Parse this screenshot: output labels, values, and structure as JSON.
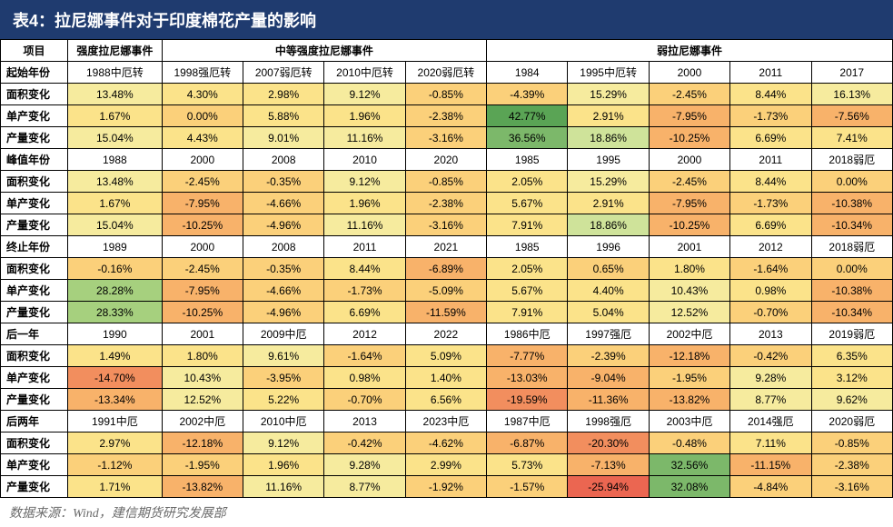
{
  "title": "表4：拉尼娜事件对于印度棉花产量的影响",
  "source": "数据来源：Wind，建信期货研究发展部",
  "header": {
    "c0": "项目",
    "g1": "强度拉尼娜事件",
    "g2": "中等强度拉尼娜事件",
    "g3": "弱拉尼娜事件"
  },
  "row_labels": {
    "start_year": "起始年份",
    "area": "面积变化",
    "yield": "单产变化",
    "output": "产量变化",
    "peak_year": "峰值年份",
    "end_year": "终止年份",
    "next_year": "后一年",
    "next2_year": "后两年"
  },
  "colors": {
    "scale": [
      "#5aa455",
      "#7cb86a",
      "#a6d07e",
      "#cfe39a",
      "#f6eb9e",
      "#fbe38a",
      "#fbd07a",
      "#f8b26a",
      "#f28e5e",
      "#eb6651"
    ]
  },
  "sections": [
    {
      "year_row": [
        "1988中厄转",
        "1998强厄转",
        "2007弱厄转",
        "2010中厄转",
        "2020弱厄转",
        "1984",
        "1995中厄转",
        "2000",
        "2011",
        "2017"
      ],
      "label_key": "start_year",
      "metrics": [
        {
          "key": "area",
          "vals": [
            13.48,
            4.3,
            2.98,
            9.12,
            -0.85,
            -4.39,
            15.29,
            -2.45,
            8.44,
            16.13
          ]
        },
        {
          "key": "yield",
          "vals": [
            1.67,
            0.0,
            5.88,
            1.96,
            -2.38,
            42.77,
            2.91,
            -7.95,
            -1.73,
            -7.56
          ]
        },
        {
          "key": "output",
          "vals": [
            15.04,
            4.43,
            9.01,
            11.16,
            -3.16,
            36.56,
            18.86,
            -10.25,
            6.69,
            7.41
          ]
        }
      ]
    },
    {
      "year_row": [
        "1988",
        "2000",
        "2008",
        "2010",
        "2020",
        "1985",
        "1995",
        "2000",
        "2011",
        "2018弱厄"
      ],
      "label_key": "peak_year",
      "metrics": [
        {
          "key": "area",
          "vals": [
            13.48,
            -2.45,
            -0.35,
            9.12,
            -0.85,
            2.05,
            15.29,
            -2.45,
            8.44,
            0.0
          ]
        },
        {
          "key": "yield",
          "vals": [
            1.67,
            -7.95,
            -4.66,
            1.96,
            -2.38,
            5.67,
            2.91,
            -7.95,
            -1.73,
            -10.38
          ]
        },
        {
          "key": "output",
          "vals": [
            15.04,
            -10.25,
            -4.96,
            11.16,
            -3.16,
            7.91,
            18.86,
            -10.25,
            6.69,
            -10.34
          ]
        }
      ]
    },
    {
      "year_row": [
        "1989",
        "2000",
        "2008",
        "2011",
        "2021",
        "1985",
        "1996",
        "2001",
        "2012",
        "2018弱厄"
      ],
      "label_key": "end_year",
      "metrics": [
        {
          "key": "area",
          "vals": [
            -0.16,
            -2.45,
            -0.35,
            8.44,
            -6.89,
            2.05,
            0.65,
            1.8,
            -1.64,
            0.0
          ]
        },
        {
          "key": "yield",
          "vals": [
            28.28,
            -7.95,
            -4.66,
            -1.73,
            -5.09,
            5.67,
            4.4,
            10.43,
            0.98,
            -10.38
          ]
        },
        {
          "key": "output",
          "vals": [
            28.33,
            -10.25,
            -4.96,
            6.69,
            -11.59,
            7.91,
            5.04,
            12.52,
            -0.7,
            -10.34
          ]
        }
      ]
    },
    {
      "year_row": [
        "1990",
        "2001",
        "2009中厄",
        "2012",
        "2022",
        "1986中厄",
        "1997强厄",
        "2002中厄",
        "2013",
        "2019弱厄"
      ],
      "label_key": "next_year",
      "metrics": [
        {
          "key": "area",
          "vals": [
            1.49,
            1.8,
            9.61,
            -1.64,
            5.09,
            -7.77,
            -2.39,
            -12.18,
            -0.42,
            6.35
          ]
        },
        {
          "key": "yield",
          "vals": [
            -14.7,
            10.43,
            -3.95,
            0.98,
            1.4,
            -13.03,
            -9.04,
            -1.95,
            9.28,
            3.12
          ]
        },
        {
          "key": "output",
          "vals": [
            -13.34,
            12.52,
            5.22,
            -0.7,
            6.56,
            -19.59,
            -11.36,
            -13.82,
            8.77,
            9.62
          ]
        }
      ]
    },
    {
      "year_row": [
        "1991中厄",
        "2002中厄",
        "2010中厄",
        "2013",
        "2023中厄",
        "1987中厄",
        "1998强厄",
        "2003中厄",
        "2014强厄",
        "2020弱厄"
      ],
      "label_key": "next2_year",
      "metrics": [
        {
          "key": "area",
          "vals": [
            2.97,
            -12.18,
            9.12,
            -0.42,
            -4.62,
            -6.87,
            -20.3,
            -0.48,
            7.11,
            -0.85
          ]
        },
        {
          "key": "yield",
          "vals": [
            -1.12,
            -1.95,
            1.96,
            9.28,
            2.99,
            5.73,
            -7.13,
            32.56,
            -11.15,
            -2.38
          ]
        },
        {
          "key": "output",
          "vals": [
            1.71,
            -13.82,
            11.16,
            8.77,
            -1.92,
            -1.57,
            -25.94,
            32.08,
            -4.84,
            -3.16
          ]
        }
      ]
    }
  ]
}
